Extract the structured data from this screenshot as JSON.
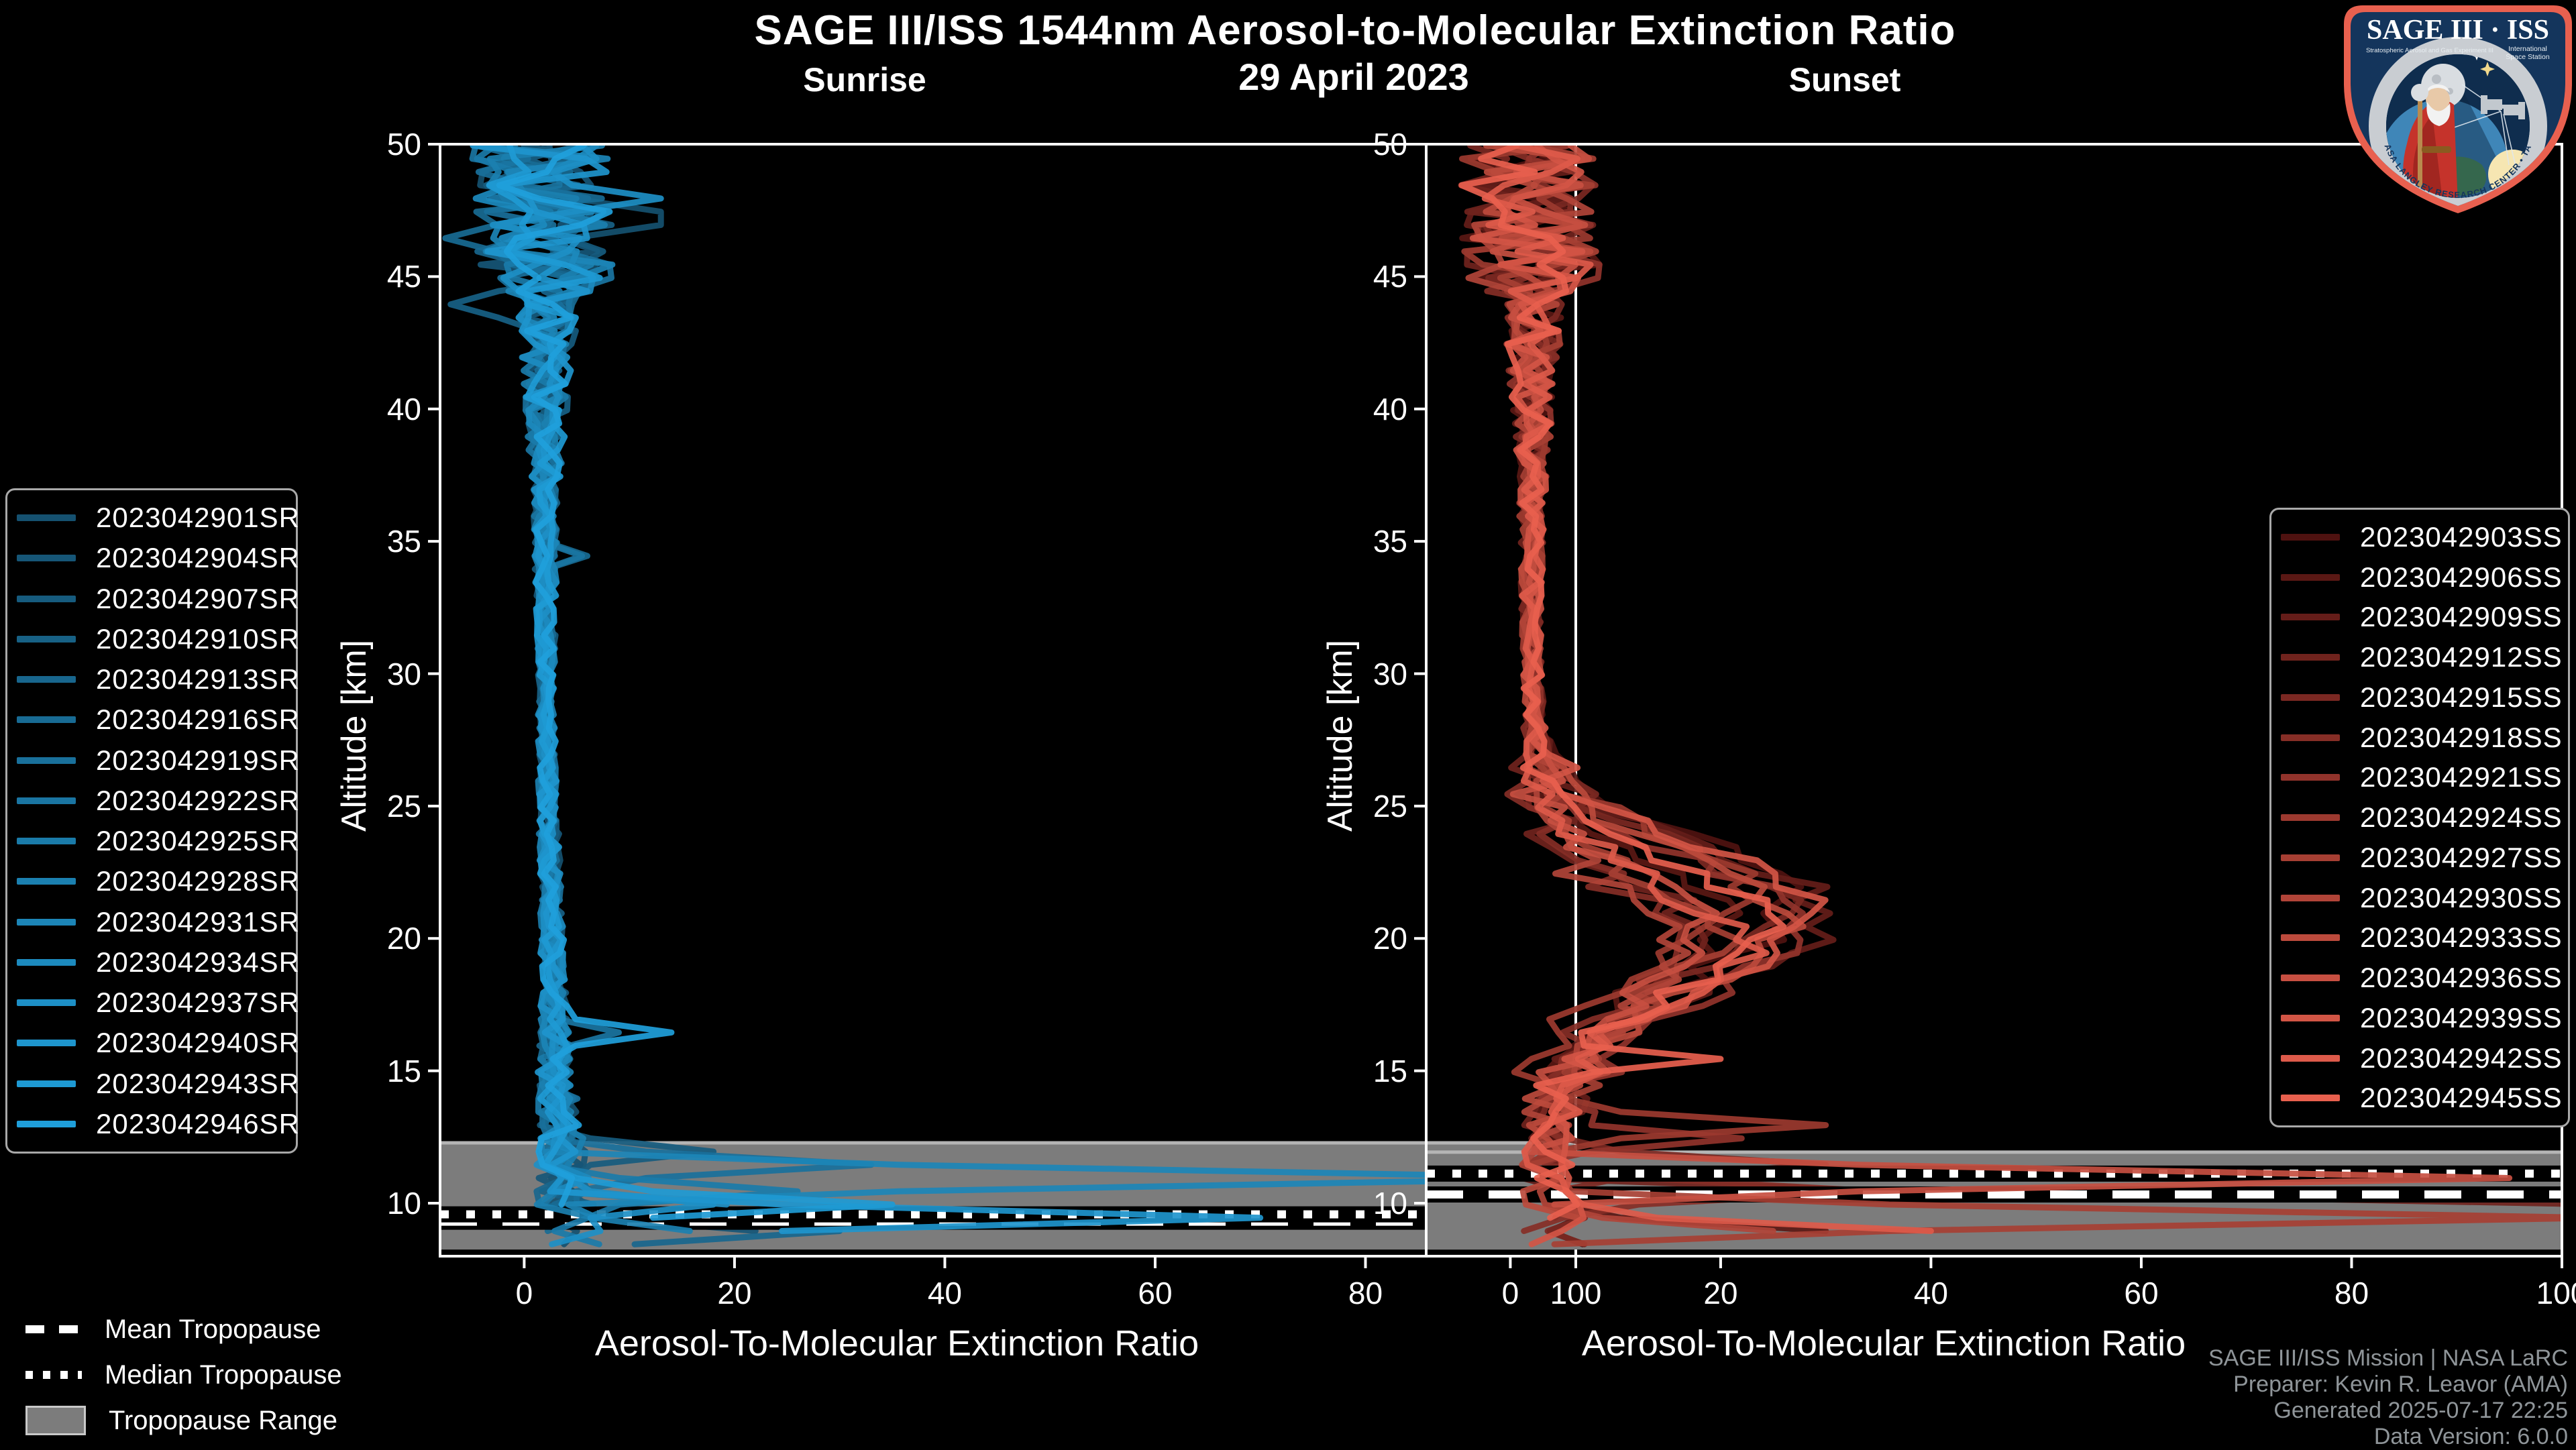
{
  "title": "SAGE III/ISS 1544nm Aerosol-to-Molecular Extinction Ratio",
  "date_subtitle": "29 April 2023",
  "attribution": {
    "line1": "SAGE III/ISS Mission | NASA LaRC",
    "line2": "Preparer: Kevin R. Leavor (AMA)",
    "line3": "Generated 2025-07-17 22:25",
    "line4": "Data Version: 6.0.0"
  },
  "tropopause_legend": {
    "mean_label": "Mean Tropopause",
    "median_label": "Median Tropopause",
    "range_label": "Tropopause Range"
  },
  "logo": {
    "title": "SAGE III · ISS",
    "subtitle_left": "Stratospheric Aerosol and Gas Experiment III",
    "subtitle_right_1": "International",
    "subtitle_right_2": "Space Station",
    "arc_text": "BALL • NASA LANGLEY RESEARCH CENTER • TAS-I • ESA",
    "border_color": "#e8604f",
    "field_color": "#14355c",
    "ring_color": "#c9cdd2",
    "earth_color": "#3f86b8",
    "land_color": "#569b57",
    "sun_color": "#f6e6b2",
    "robe_color": "#c5332b"
  },
  "chart_data": [
    {
      "type": "line",
      "panel": "Sunrise",
      "title": "Sunrise",
      "xlabel": "Aerosol-To-Molecular Extinction Ratio",
      "ylabel": "Altitude [km]",
      "xlim": [
        -8,
        100
      ],
      "ylim": [
        8,
        50
      ],
      "xticks": [
        0,
        20,
        40,
        60,
        80,
        100
      ],
      "yticks": [
        10,
        15,
        20,
        25,
        30,
        35,
        40,
        45,
        50
      ],
      "grid": false,
      "legend_position": "outside-left",
      "tropopause": {
        "mean_km": 9.3,
        "median_km": 9.58,
        "range_km": [
          8.25,
          12.28
        ],
        "band_color": "#7c7c7c",
        "band_edge_color": "#b5b5b5"
      },
      "base_profile": [
        [
          50,
          1.5
        ],
        [
          44,
          2.2
        ],
        [
          36,
          2.0
        ],
        [
          26,
          2.2
        ],
        [
          18,
          2.8
        ],
        [
          13,
          3.2
        ],
        [
          10,
          4.0
        ],
        [
          8,
          4.5
        ]
      ],
      "noise_profile": [
        [
          50,
          6.5
        ],
        [
          45,
          6.5
        ],
        [
          44,
          3.0
        ],
        [
          40,
          2.0
        ],
        [
          36,
          1.2
        ],
        [
          30,
          0.8
        ],
        [
          26,
          0.9
        ],
        [
          18,
          1.2
        ],
        [
          13,
          2.2
        ],
        [
          8,
          3.2
        ]
      ],
      "series": [
        {
          "name": "2023042901SR",
          "color": "#155170",
          "spikes": [
            [
              47.2,
              13
            ]
          ]
        },
        {
          "name": "2023042904SR",
          "color": "#165677",
          "spikes": [
            [
              9.0,
              22
            ]
          ]
        },
        {
          "name": "2023042907SR",
          "color": "#165b7e",
          "spikes": [
            [
              12.0,
              18
            ]
          ]
        },
        {
          "name": "2023042910SR",
          "color": "#176185",
          "spikes": [
            [
              44.0,
              -7
            ]
          ]
        },
        {
          "name": "2023042913SR",
          "color": "#18668d",
          "spikes": [
            [
              9.0,
              30
            ]
          ]
        },
        {
          "name": "2023042916SR",
          "color": "#186b94",
          "spikes": [
            [
              46.5,
              -7.5
            ],
            [
              34.5,
              6
            ]
          ]
        },
        {
          "name": "2023042919SR",
          "color": "#19709b",
          "spikes": [
            [
              11.5,
              33
            ]
          ]
        },
        {
          "name": "2023042922SR",
          "color": "#1a75a2",
          "spikes": [
            [
              34.6,
              5.5
            ],
            [
              16.6,
              9
            ]
          ]
        },
        {
          "name": "2023042925SR",
          "color": "#1a7ba9",
          "spikes": [
            [
              10.3,
              26
            ]
          ]
        },
        {
          "name": "2023042928SR",
          "color": "#1b80b0",
          "spikes": [
            [
              8.7,
              45
            ]
          ]
        },
        {
          "name": "2023042931SR",
          "color": "#1c85b7",
          "spikes": [
            [
              10.9,
              102
            ]
          ]
        },
        {
          "name": "2023042934SR",
          "color": "#1c8abe",
          "spikes": [
            [
              9.5,
              55
            ]
          ]
        },
        {
          "name": "2023042937SR",
          "color": "#1d8fc6",
          "spikes": [
            [
              48.0,
              13
            ],
            [
              9.9,
              18
            ]
          ]
        },
        {
          "name": "2023042940SR",
          "color": "#1e95cd",
          "spikes": [
            [
              9.3,
              70
            ]
          ]
        },
        {
          "name": "2023042943SR",
          "color": "#1e9ad4",
          "spikes": [
            [
              9.8,
              35
            ]
          ]
        },
        {
          "name": "2023042946SR",
          "color": "#1f9fdb",
          "spikes": [
            [
              16.5,
              14
            ],
            [
              8.8,
              28
            ]
          ]
        }
      ]
    },
    {
      "type": "line",
      "panel": "Sunset",
      "title": "Sunset",
      "xlabel": "Aerosol-To-Molecular Extinction Ratio",
      "ylabel": "Altitude [km]",
      "xlim": [
        -8,
        100
      ],
      "ylim": [
        8,
        50
      ],
      "xticks": [
        0,
        20,
        40,
        60,
        80,
        100
      ],
      "yticks": [
        10,
        15,
        20,
        25,
        30,
        35,
        40,
        45,
        50
      ],
      "grid": false,
      "legend_position": "outside-right",
      "tropopause": {
        "mean_km": 10.33,
        "median_km": 11.12,
        "range_km": [
          8.25,
          11.93
        ],
        "band_color": "#7c7c7c",
        "band_edge_color": "#b5b5b5"
      },
      "base_profile": [
        [
          50,
          1.5
        ],
        [
          44,
          2.2
        ],
        [
          36,
          2.0
        ],
        [
          26,
          2.2
        ],
        [
          18,
          2.8
        ],
        [
          13,
          3.2
        ],
        [
          10,
          4.0
        ],
        [
          8,
          4.5
        ]
      ],
      "noise_profile": [
        [
          50,
          6.5
        ],
        [
          45,
          6.5
        ],
        [
          44,
          3.0
        ],
        [
          40,
          2.0
        ],
        [
          36,
          1.2
        ],
        [
          30,
          0.9
        ],
        [
          26,
          1.1
        ],
        [
          18,
          1.6
        ],
        [
          13,
          2.4
        ],
        [
          8,
          3.2
        ]
      ],
      "bulge_noise": 2.2,
      "series": [
        {
          "name": "2023042903SS",
          "color": "#4f1210",
          "bulge": {
            "center_km": 21.5,
            "peak": 24,
            "width_km": 2.3
          },
          "spikes": []
        },
        {
          "name": "2023042906SS",
          "color": "#5a1814",
          "bulge": {
            "center_km": 20.8,
            "peak": 18,
            "width_km": 2.1
          },
          "spikes": [
            [
              9.2,
              30
            ]
          ]
        },
        {
          "name": "2023042909SS",
          "color": "#651d19",
          "bulge": {
            "center_km": 21.0,
            "peak": 27,
            "width_km": 2.4
          },
          "spikes": [
            [
              8.6,
              45
            ]
          ]
        },
        {
          "name": "2023042912SS",
          "color": "#70231d",
          "bulge": {
            "center_km": 20.0,
            "peak": 15,
            "width_km": 2.0
          },
          "spikes": [
            [
              10.2,
              104
            ]
          ]
        },
        {
          "name": "2023042915SS",
          "color": "#7b2822",
          "bulge": {
            "center_km": 21.2,
            "peak": 22,
            "width_km": 2.3
          },
          "spikes": [
            [
              11.6,
              30
            ]
          ]
        },
        {
          "name": "2023042918SS",
          "color": "#862e26",
          "bulge": {
            "center_km": 19.8,
            "peak": 14,
            "width_km": 2.0
          },
          "spikes": [
            [
              10.6,
              35
            ]
          ]
        },
        {
          "name": "2023042921SS",
          "color": "#91332b",
          "bulge": {
            "center_km": 20.5,
            "peak": 25,
            "width_km": 2.4
          },
          "spikes": [
            [
              12.6,
              22
            ]
          ]
        },
        {
          "name": "2023042924SS",
          "color": "#9c392f",
          "bulge": {
            "center_km": 21.8,
            "peak": 20,
            "width_km": 2.2
          },
          "spikes": [
            [
              13.2,
              30
            ]
          ]
        },
        {
          "name": "2023042927SS",
          "color": "#a63f33",
          "bulge": {
            "center_km": 20.2,
            "peak": 17,
            "width_km": 2.1
          },
          "spikes": [
            [
              9.6,
              103
            ]
          ]
        },
        {
          "name": "2023042930SS",
          "color": "#b14438",
          "bulge": {
            "center_km": 19.6,
            "peak": 12,
            "width_km": 2.0
          },
          "spikes": [
            [
              9.0,
              25
            ]
          ]
        },
        {
          "name": "2023042933SS",
          "color": "#bc4a3c",
          "bulge": {
            "center_km": 20.9,
            "peak": 23,
            "width_km": 2.3
          },
          "spikes": []
        },
        {
          "name": "2023042936SS",
          "color": "#c74f41",
          "bulge": {
            "center_km": 20.4,
            "peak": 16,
            "width_km": 2.1
          },
          "spikes": [
            [
              11.1,
              95
            ]
          ]
        },
        {
          "name": "2023042939SS",
          "color": "#d25545",
          "bulge": {
            "center_km": 21.1,
            "peak": 26,
            "width_km": 2.4
          },
          "spikes": []
        },
        {
          "name": "2023042942SS",
          "color": "#dd5a4a",
          "bulge": {
            "center_km": 19.9,
            "peak": 19,
            "width_km": 2.1
          },
          "spikes": [
            [
              8.8,
              40
            ]
          ]
        },
        {
          "name": "2023042945SS",
          "color": "#e8604e",
          "bulge": {
            "center_km": 20.6,
            "peak": 22,
            "width_km": 2.2
          },
          "spikes": [
            [
              15.6,
              20
            ]
          ]
        }
      ]
    }
  ]
}
